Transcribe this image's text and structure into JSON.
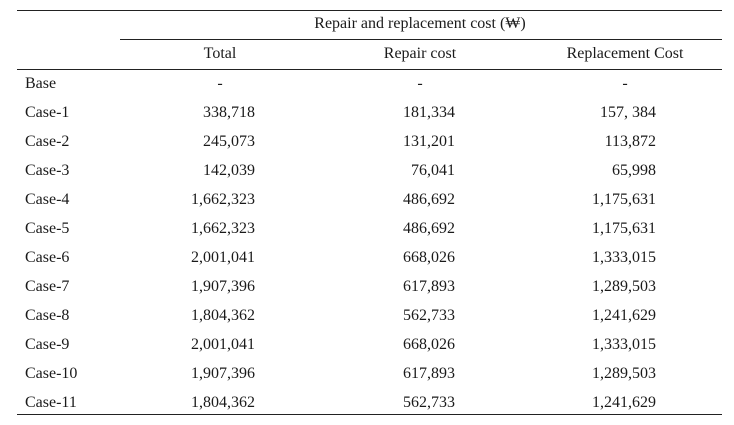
{
  "table": {
    "group_header": "Repair and replacement cost (₩)",
    "columns": [
      "Total",
      "Repair cost",
      "Replacement Cost"
    ],
    "rows": [
      {
        "label": "Base",
        "total": "-",
        "repair": "-",
        "replacement": "-"
      },
      {
        "label": "Case-1",
        "total": "338,718",
        "repair": "181,334",
        "replacement": "157, 384"
      },
      {
        "label": "Case-2",
        "total": "245,073",
        "repair": "131,201",
        "replacement": "113,872"
      },
      {
        "label": "Case-3",
        "total": "142,039",
        "repair": "76,041",
        "replacement": "65,998"
      },
      {
        "label": "Case-4",
        "total": "1,662,323",
        "repair": "486,692",
        "replacement": "1,175,631"
      },
      {
        "label": "Case-5",
        "total": "1,662,323",
        "repair": "486,692",
        "replacement": "1,175,631"
      },
      {
        "label": "Case-6",
        "total": "2,001,041",
        "repair": "668,026",
        "replacement": "1,333,015"
      },
      {
        "label": "Case-7",
        "total": "1,907,396",
        "repair": "617,893",
        "replacement": "1,289,503"
      },
      {
        "label": "Case-8",
        "total": "1,804,362",
        "repair": "562,733",
        "replacement": "1,241,629"
      },
      {
        "label": "Case-9",
        "total": "2,001,041",
        "repair": "668,026",
        "replacement": "1,333,015"
      },
      {
        "label": "Case-10",
        "total": "1,907,396",
        "repair": "617,893",
        "replacement": "1,289,503"
      },
      {
        "label": "Case-11",
        "total": "1,804,362",
        "repair": "562,733",
        "replacement": "1,241,629"
      }
    ]
  }
}
